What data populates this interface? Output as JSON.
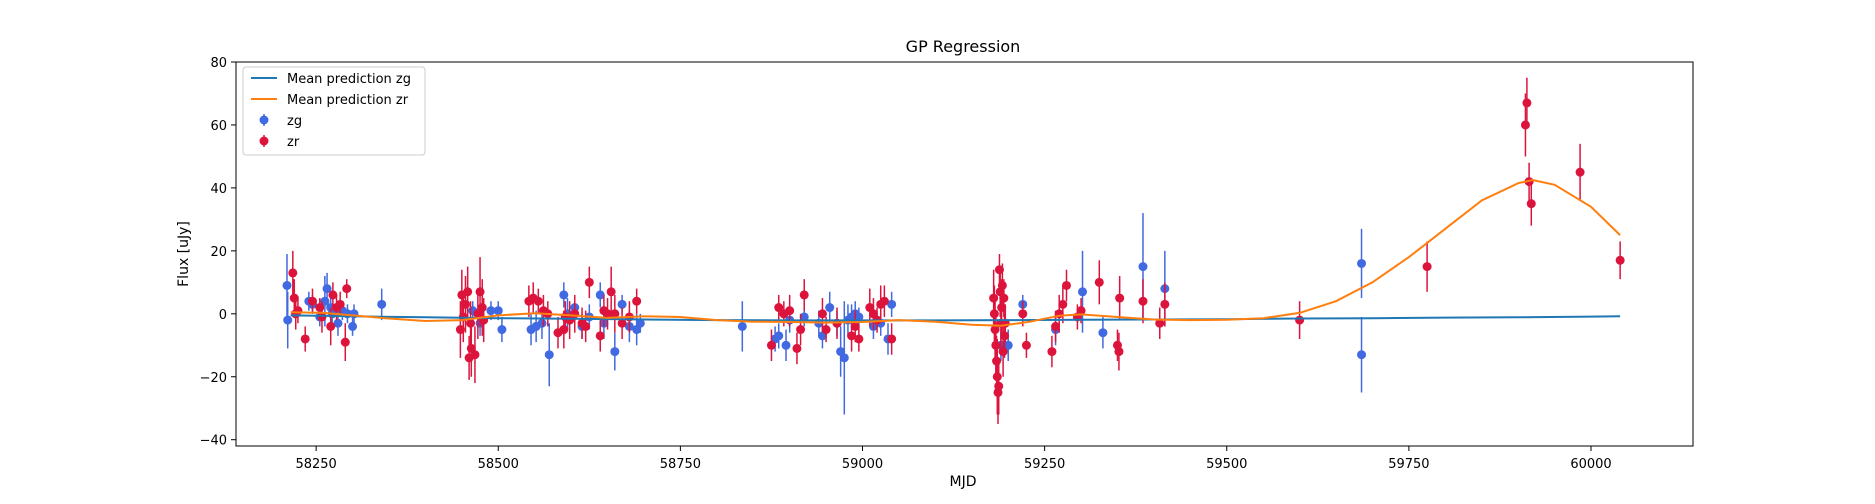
{
  "chart_data": {
    "type": "scatter",
    "title": "GP Regression",
    "xlabel": "MJD",
    "ylabel": "Flux [uJy]",
    "xlim": [
      58140,
      60140
    ],
    "ylim": [
      -42,
      80
    ],
    "xticks": [
      58250,
      58500,
      58750,
      59000,
      59250,
      59500,
      59750,
      60000
    ],
    "yticks": [
      -40,
      -20,
      0,
      20,
      40,
      60,
      80
    ],
    "legend_position": "top-left",
    "grid": false,
    "lines": [
      {
        "name": "Mean prediction zg",
        "color": "#1f77b4",
        "x": [
          58215,
          58300,
          58400,
          58500,
          58600,
          58700,
          58800,
          58900,
          59000,
          59100,
          59200,
          59300,
          59400,
          59500,
          59600,
          59700,
          59800,
          59900,
          60000,
          60040
        ],
        "y": [
          -0.5,
          -0.8,
          -1.1,
          -1.4,
          -1.6,
          -1.8,
          -2.0,
          -2.1,
          -2.1,
          -2.1,
          -2.0,
          -1.9,
          -1.8,
          -1.7,
          -1.5,
          -1.4,
          -1.2,
          -1.1,
          -0.9,
          -0.8
        ]
      },
      {
        "name": "Mean prediction zr",
        "color": "#ff7f0e",
        "x": [
          58215,
          58260,
          58300,
          58350,
          58400,
          58450,
          58500,
          58550,
          58600,
          58650,
          58700,
          58750,
          58800,
          58850,
          58900,
          58950,
          59000,
          59050,
          59100,
          59150,
          59190,
          59230,
          59270,
          59300,
          59350,
          59400,
          59450,
          59500,
          59550,
          59600,
          59650,
          59700,
          59750,
          59800,
          59850,
          59900,
          59920,
          59950,
          60000,
          60040
        ],
        "y": [
          0.5,
          0.3,
          -0.5,
          -1.5,
          -2.3,
          -2.0,
          -0.5,
          0.2,
          -0.5,
          -1.3,
          -0.8,
          -1.0,
          -2.0,
          -2.5,
          -2.6,
          -2.8,
          -2.6,
          -2.0,
          -2.5,
          -3.5,
          -3.8,
          -2.5,
          -0.6,
          -0.2,
          -1.0,
          -1.8,
          -2.0,
          -1.9,
          -1.4,
          0.3,
          4.0,
          10.0,
          18.0,
          27.0,
          36.0,
          41.5,
          42.5,
          41.0,
          34.0,
          25.0
        ]
      }
    ],
    "series": [
      {
        "name": "zg",
        "color": "#4169e1",
        "points": [
          [
            58210,
            9,
            10
          ],
          [
            58211,
            -2,
            9
          ],
          [
            58222,
            0,
            3
          ],
          [
            58240,
            4,
            3
          ],
          [
            58245,
            3,
            3
          ],
          [
            58255,
            -1,
            3
          ],
          [
            58262,
            4,
            8
          ],
          [
            58265,
            8,
            5
          ],
          [
            58270,
            2,
            3
          ],
          [
            58272,
            0,
            3
          ],
          [
            58280,
            -3,
            4
          ],
          [
            58286,
            1,
            3
          ],
          [
            58293,
            0,
            3
          ],
          [
            58300,
            -4,
            3
          ],
          [
            58302,
            0,
            3
          ],
          [
            58340,
            3,
            5
          ],
          [
            58465,
            1,
            3
          ],
          [
            58475,
            -3,
            4
          ],
          [
            58490,
            1,
            3
          ],
          [
            58500,
            1,
            3
          ],
          [
            58505,
            -5,
            4
          ],
          [
            58545,
            -5,
            5
          ],
          [
            58552,
            -4,
            5
          ],
          [
            58560,
            -3,
            5
          ],
          [
            58570,
            -13,
            10
          ],
          [
            58590,
            6,
            4
          ],
          [
            58595,
            0,
            5
          ],
          [
            58605,
            2,
            3
          ],
          [
            58615,
            -4,
            4
          ],
          [
            58625,
            -1,
            4
          ],
          [
            58640,
            6,
            4
          ],
          [
            58645,
            -3,
            5
          ],
          [
            58660,
            -12,
            6
          ],
          [
            58670,
            3,
            3
          ],
          [
            58680,
            -4,
            5
          ],
          [
            58690,
            -5,
            5
          ],
          [
            58695,
            -3,
            3
          ],
          [
            58835,
            -4,
            8
          ],
          [
            58880,
            -8,
            4
          ],
          [
            58885,
            -7,
            4
          ],
          [
            58895,
            -10,
            5
          ],
          [
            58900,
            -2,
            4
          ],
          [
            58920,
            -1,
            3
          ],
          [
            58940,
            -3,
            4
          ],
          [
            58945,
            -7,
            4
          ],
          [
            58955,
            2,
            5
          ],
          [
            58965,
            -3,
            4
          ],
          [
            58970,
            -12,
            8
          ],
          [
            58975,
            -14,
            18
          ],
          [
            58980,
            -2,
            5
          ],
          [
            58985,
            -1,
            4
          ],
          [
            58990,
            0,
            4
          ],
          [
            58995,
            -1,
            3
          ],
          [
            59015,
            -4,
            4
          ],
          [
            59025,
            -3,
            4
          ],
          [
            59035,
            -8,
            5
          ],
          [
            59040,
            3,
            4
          ],
          [
            59190,
            -10,
            5
          ],
          [
            59200,
            -10,
            5
          ],
          [
            59220,
            3,
            3
          ],
          [
            59265,
            -5,
            5
          ],
          [
            59302,
            7,
            13
          ],
          [
            59330,
            -6,
            5
          ],
          [
            59385,
            15,
            17
          ],
          [
            59415,
            8,
            12
          ],
          [
            59685,
            16,
            11
          ],
          [
            59685,
            -13,
            12
          ]
        ]
      },
      {
        "name": "zr",
        "color": "#dc143c",
        "points": [
          [
            58218,
            13,
            7
          ],
          [
            58220,
            5,
            6
          ],
          [
            58222,
            0,
            5
          ],
          [
            58225,
            1,
            4
          ],
          [
            58235,
            -8,
            4
          ],
          [
            58245,
            4,
            4
          ],
          [
            58255,
            2,
            3
          ],
          [
            58258,
            -1,
            5
          ],
          [
            58270,
            -4,
            6
          ],
          [
            58273,
            6,
            4
          ],
          [
            58278,
            2,
            4
          ],
          [
            58283,
            3,
            4
          ],
          [
            58290,
            -9,
            6
          ],
          [
            58292,
            8,
            3
          ],
          [
            58448,
            -5,
            9
          ],
          [
            58450,
            6,
            8
          ],
          [
            58452,
            -1,
            8
          ],
          [
            58455,
            3,
            9
          ],
          [
            58458,
            7,
            8
          ],
          [
            58460,
            -14,
            7
          ],
          [
            58462,
            -3,
            7
          ],
          [
            58463,
            -11,
            9
          ],
          [
            58468,
            -13,
            9
          ],
          [
            58472,
            0,
            8
          ],
          [
            58475,
            7,
            11
          ],
          [
            58478,
            2,
            9
          ],
          [
            58480,
            -2,
            7
          ],
          [
            58542,
            4,
            5
          ],
          [
            58548,
            5,
            5
          ],
          [
            58555,
            4,
            4
          ],
          [
            58562,
            1,
            5
          ],
          [
            58568,
            0,
            4
          ],
          [
            58582,
            -6,
            5
          ],
          [
            58590,
            -5,
            6
          ],
          [
            58592,
            -1,
            5
          ],
          [
            58598,
            -2,
            6
          ],
          [
            58605,
            0,
            6
          ],
          [
            58615,
            -3,
            5
          ],
          [
            58620,
            -4,
            5
          ],
          [
            58625,
            10,
            5
          ],
          [
            58640,
            -7,
            5
          ],
          [
            58645,
            1,
            5
          ],
          [
            58650,
            0,
            5
          ],
          [
            58655,
            7,
            8
          ],
          [
            58660,
            0,
            6
          ],
          [
            58670,
            -3,
            5
          ],
          [
            58680,
            -1,
            5
          ],
          [
            58690,
            4,
            4
          ],
          [
            58875,
            -10,
            5
          ],
          [
            58885,
            2,
            4
          ],
          [
            58892,
            0,
            4
          ],
          [
            58900,
            1,
            5
          ],
          [
            58910,
            -11,
            5
          ],
          [
            58915,
            -5,
            5
          ],
          [
            58920,
            6,
            5
          ],
          [
            58945,
            0,
            5
          ],
          [
            58950,
            -5,
            4
          ],
          [
            58965,
            -3,
            5
          ],
          [
            58985,
            -7,
            5
          ],
          [
            58990,
            -4,
            5
          ],
          [
            58995,
            -8,
            4
          ],
          [
            59010,
            2,
            6
          ],
          [
            59015,
            0,
            5
          ],
          [
            59020,
            -2,
            4
          ],
          [
            59025,
            3,
            6
          ],
          [
            59030,
            4,
            5
          ],
          [
            59040,
            -8,
            5
          ],
          [
            59180,
            5,
            9
          ],
          [
            59181,
            0,
            9
          ],
          [
            59182,
            -5,
            10
          ],
          [
            59183,
            -10,
            10
          ],
          [
            59184,
            -15,
            8
          ],
          [
            59185,
            -20,
            12
          ],
          [
            59186,
            -25,
            10
          ],
          [
            59187,
            -23,
            9
          ],
          [
            59188,
            14,
            5
          ],
          [
            59189,
            7,
            8
          ],
          [
            59190,
            -3,
            8
          ],
          [
            59191,
            2,
            9
          ],
          [
            59192,
            9,
            7
          ],
          [
            59193,
            -12,
            8
          ],
          [
            59194,
            5,
            6
          ],
          [
            59195,
            -7,
            7
          ],
          [
            59196,
            -3,
            6
          ],
          [
            59220,
            0,
            4
          ],
          [
            59225,
            -10,
            4
          ],
          [
            59260,
            -12,
            5
          ],
          [
            59265,
            -4,
            5
          ],
          [
            59270,
            0,
            6
          ],
          [
            59275,
            3,
            6
          ],
          [
            59280,
            9,
            5
          ],
          [
            59295,
            -1,
            4
          ],
          [
            59300,
            1,
            4
          ],
          [
            59325,
            10,
            7
          ],
          [
            59350,
            -10,
            5
          ],
          [
            59352,
            -12,
            6
          ],
          [
            59353,
            5,
            7
          ],
          [
            59385,
            4,
            7
          ],
          [
            59408,
            -3,
            5
          ],
          [
            59415,
            3,
            7
          ],
          [
            59600,
            -2,
            6
          ],
          [
            59775,
            15,
            8
          ],
          [
            59910,
            60,
            10
          ],
          [
            59912,
            67,
            8
          ],
          [
            59915,
            42,
            6
          ],
          [
            59918,
            35,
            7
          ],
          [
            59985,
            45,
            9
          ],
          [
            60040,
            17,
            6
          ]
        ]
      }
    ]
  }
}
